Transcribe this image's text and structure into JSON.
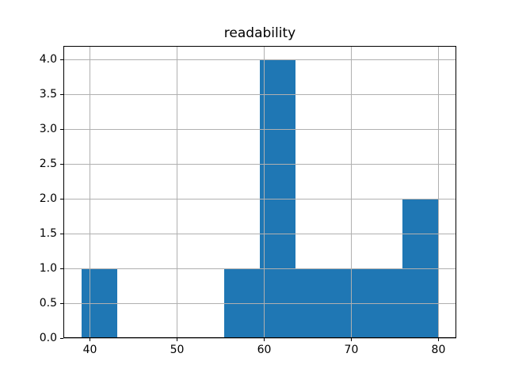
{
  "title": "readability",
  "chart_data": {
    "type": "bar",
    "subtype": "histogram",
    "title": "readability",
    "xlabel": "",
    "ylabel": "",
    "bin_edges": [
      39.0,
      43.1,
      47.2,
      51.3,
      55.4,
      59.5,
      63.6,
      67.7,
      71.8,
      75.9,
      80.0
    ],
    "counts": [
      1,
      0,
      0,
      0,
      1,
      4,
      1,
      1,
      1,
      2
    ],
    "x_ticks": [
      40,
      50,
      60,
      70,
      80
    ],
    "y_ticks": [
      0.0,
      0.5,
      1.0,
      1.5,
      2.0,
      2.5,
      3.0,
      3.5,
      4.0
    ],
    "xlim": [
      36.95,
      82.05
    ],
    "ylim": [
      0,
      4.2
    ],
    "bar_color": "#1f77b4",
    "grid_color": "#b0b0b0",
    "grid": "on",
    "grid_above_bars": true,
    "legend_position": "none"
  }
}
